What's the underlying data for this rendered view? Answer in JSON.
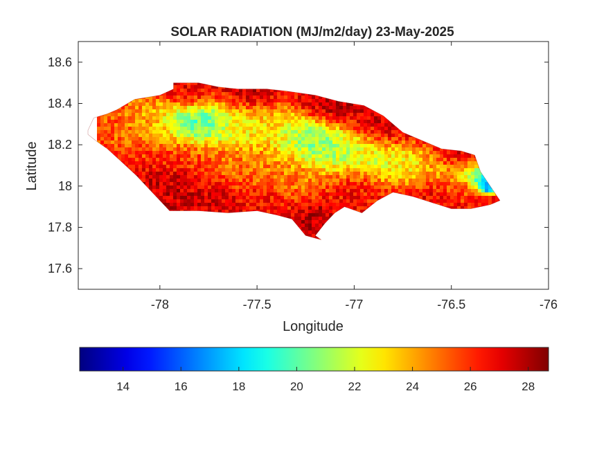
{
  "chart_data": {
    "type": "heatmap",
    "title": "SOLAR RADIATION (MJ/m2/day) 23-May-2025",
    "xlabel": "Longitude",
    "ylabel": "Latitude",
    "xlim": [
      -78.42,
      -76.0
    ],
    "ylim": [
      17.5,
      18.7
    ],
    "xticks": [
      {
        "value": -78,
        "label": "-78"
      },
      {
        "value": -77.5,
        "label": "-77.5"
      },
      {
        "value": -77,
        "label": "-77"
      },
      {
        "value": -76.5,
        "label": "-76.5"
      },
      {
        "value": -76,
        "label": "-76"
      }
    ],
    "yticks": [
      {
        "value": 17.6,
        "label": "17.6"
      },
      {
        "value": 17.8,
        "label": "17.8"
      },
      {
        "value": 18,
        "label": "18"
      },
      {
        "value": 18.2,
        "label": "18.2"
      },
      {
        "value": 18.4,
        "label": "18.4"
      },
      {
        "value": 18.6,
        "label": "18.6"
      }
    ],
    "grid": false,
    "colormap": "jet",
    "clim": [
      12.5,
      28.7
    ],
    "colorbar": {
      "location": "south",
      "ticks": [
        {
          "value": 14,
          "label": "14"
        },
        {
          "value": 16,
          "label": "16"
        },
        {
          "value": 18,
          "label": "18"
        },
        {
          "value": 20,
          "label": "20"
        },
        {
          "value": 22,
          "label": "22"
        },
        {
          "value": 24,
          "label": "24"
        },
        {
          "value": 26,
          "label": "26"
        },
        {
          "value": 28,
          "label": "28"
        }
      ]
    },
    "outline": [
      [
        -78.37,
        18.27
      ],
      [
        -78.34,
        18.33
      ],
      [
        -78.27,
        18.35
      ],
      [
        -78.22,
        18.37
      ],
      [
        -78.13,
        18.42
      ],
      [
        -78.0,
        18.44
      ],
      [
        -77.93,
        18.47
      ],
      [
        -77.93,
        18.5
      ],
      [
        -77.8,
        18.5
      ],
      [
        -77.7,
        18.48
      ],
      [
        -77.6,
        18.47
      ],
      [
        -77.45,
        18.47
      ],
      [
        -77.35,
        18.46
      ],
      [
        -77.2,
        18.44
      ],
      [
        -77.08,
        18.41
      ],
      [
        -76.95,
        18.39
      ],
      [
        -76.85,
        18.34
      ],
      [
        -76.75,
        18.26
      ],
      [
        -76.65,
        18.22
      ],
      [
        -76.55,
        18.18
      ],
      [
        -76.45,
        18.17
      ],
      [
        -76.38,
        18.15
      ],
      [
        -76.35,
        18.07
      ],
      [
        -76.3,
        18.0
      ],
      [
        -76.25,
        17.93
      ],
      [
        -76.3,
        17.91
      ],
      [
        -76.4,
        17.89
      ],
      [
        -76.5,
        17.89
      ],
      [
        -76.6,
        17.92
      ],
      [
        -76.7,
        17.95
      ],
      [
        -76.8,
        17.97
      ],
      [
        -76.88,
        17.93
      ],
      [
        -76.96,
        17.87
      ],
      [
        -77.05,
        17.9
      ],
      [
        -77.1,
        17.87
      ],
      [
        -77.15,
        17.82
      ],
      [
        -77.2,
        17.76
      ],
      [
        -77.17,
        17.74
      ],
      [
        -77.25,
        17.76
      ],
      [
        -77.32,
        17.84
      ],
      [
        -77.4,
        17.86
      ],
      [
        -77.5,
        17.88
      ],
      [
        -77.65,
        17.87
      ],
      [
        -77.8,
        17.88
      ],
      [
        -77.95,
        17.88
      ],
      [
        -78.05,
        17.98
      ],
      [
        -78.12,
        18.05
      ],
      [
        -78.2,
        18.12
      ],
      [
        -78.27,
        18.18
      ],
      [
        -78.33,
        18.22
      ],
      [
        -78.37,
        18.25
      ]
    ],
    "field": [
      {
        "lon": -78.18,
        "lat": 18.28,
        "value": 25.0,
        "spread": 0.16
      },
      {
        "lon": -78.05,
        "lat": 18.32,
        "value": 23.0,
        "spread": 0.12
      },
      {
        "lon": -77.85,
        "lat": 18.3,
        "value": 18.5,
        "spread": 0.12
      },
      {
        "lon": -77.75,
        "lat": 18.3,
        "value": 19.5,
        "spread": 0.1
      },
      {
        "lon": -77.62,
        "lat": 18.3,
        "value": 21.5,
        "spread": 0.14
      },
      {
        "lon": -77.45,
        "lat": 18.27,
        "value": 22.5,
        "spread": 0.14
      },
      {
        "lon": -77.28,
        "lat": 18.24,
        "value": 20.5,
        "spread": 0.12
      },
      {
        "lon": -77.18,
        "lat": 18.2,
        "value": 19.5,
        "spread": 0.12
      },
      {
        "lon": -77.05,
        "lat": 18.17,
        "value": 21.0,
        "spread": 0.14
      },
      {
        "lon": -76.88,
        "lat": 18.13,
        "value": 21.5,
        "spread": 0.12
      },
      {
        "lon": -76.72,
        "lat": 18.09,
        "value": 22.0,
        "spread": 0.12
      },
      {
        "lon": -76.55,
        "lat": 18.07,
        "value": 22.5,
        "spread": 0.1
      },
      {
        "lon": -76.4,
        "lat": 18.06,
        "value": 21.0,
        "spread": 0.07
      },
      {
        "lon": -76.34,
        "lat": 18.04,
        "value": 15.0,
        "spread": 0.05
      },
      {
        "lon": -76.32,
        "lat": 18.0,
        "value": 13.0,
        "spread": 0.04
      },
      {
        "lon": -77.6,
        "lat": 18.08,
        "value": 24.5,
        "spread": 0.16
      },
      {
        "lon": -77.35,
        "lat": 18.05,
        "value": 24.0,
        "spread": 0.16
      },
      {
        "lon": -77.9,
        "lat": 18.15,
        "value": 25.5,
        "spread": 0.14
      },
      {
        "lon": -77.95,
        "lat": 18.0,
        "value": 28.0,
        "spread": 0.13
      },
      {
        "lon": -77.7,
        "lat": 17.95,
        "value": 27.5,
        "spread": 0.13
      },
      {
        "lon": -77.45,
        "lat": 17.93,
        "value": 27.0,
        "spread": 0.13
      },
      {
        "lon": -77.2,
        "lat": 17.85,
        "value": 28.0,
        "spread": 0.1
      },
      {
        "lon": -77.0,
        "lat": 17.98,
        "value": 26.5,
        "spread": 0.12
      },
      {
        "lon": -77.1,
        "lat": 18.4,
        "value": 28.0,
        "spread": 0.14
      },
      {
        "lon": -76.85,
        "lat": 18.3,
        "value": 27.5,
        "spread": 0.14
      },
      {
        "lon": -77.55,
        "lat": 18.44,
        "value": 28.0,
        "spread": 0.12
      },
      {
        "lon": -77.85,
        "lat": 18.45,
        "value": 27.0,
        "spread": 0.1
      },
      {
        "lon": -76.6,
        "lat": 17.95,
        "value": 27.0,
        "spread": 0.14
      },
      {
        "lon": -76.45,
        "lat": 17.98,
        "value": 25.0,
        "spread": 0.08
      },
      {
        "lon": -76.5,
        "lat": 18.14,
        "value": 27.5,
        "spread": 0.1
      }
    ]
  }
}
